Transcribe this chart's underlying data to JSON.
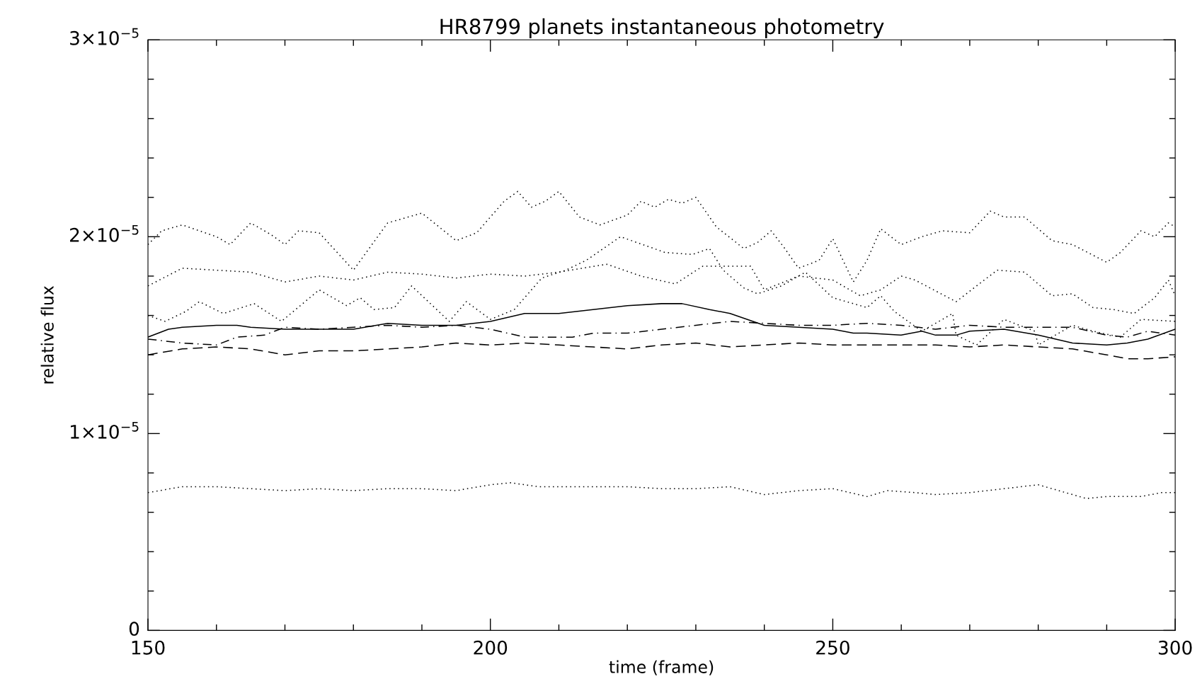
{
  "chart_data": {
    "type": "line",
    "title": "HR8799 planets instantaneous photometry",
    "xlabel": "time (frame)",
    "ylabel": "relative flux",
    "xlim": [
      150,
      300
    ],
    "ylim": [
      0,
      3e-05
    ],
    "xticks": [
      150,
      200,
      250,
      300
    ],
    "yticks": [
      {
        "value": 0,
        "label": "0"
      },
      {
        "value": 1e-05,
        "label": "1×10$^{−5}$"
      },
      {
        "value": 2e-05,
        "label": "2×10$^{−5}$"
      },
      {
        "value": 3e-05,
        "label": "3×10$^{−5}$"
      }
    ],
    "grid": false,
    "marker": "none",
    "series": [
      {
        "color": "#000000",
        "line_style": "dotted",
        "x": [
          150,
          152,
          155,
          160,
          162,
          165,
          168,
          170,
          172,
          175,
          180,
          185,
          190,
          195,
          198,
          202,
          204,
          206,
          208,
          210,
          213,
          216,
          220,
          222,
          224,
          226,
          228,
          230,
          233,
          237,
          239,
          241,
          243,
          245,
          248,
          250,
          253,
          255,
          257,
          260,
          263,
          266,
          270,
          273,
          275,
          278,
          282,
          285,
          290,
          292,
          295,
          297,
          299,
          300
        ],
        "values": [
          1.96e-05,
          2.03e-05,
          2.06e-05,
          2e-05,
          1.96e-05,
          2.07e-05,
          2.01e-05,
          1.96e-05,
          2.03e-05,
          2.02e-05,
          1.83e-05,
          2.07e-05,
          2.12e-05,
          1.98e-05,
          2.02e-05,
          2.18e-05,
          2.23e-05,
          2.15e-05,
          2.18e-05,
          2.23e-05,
          2.1e-05,
          2.06e-05,
          2.11e-05,
          2.18e-05,
          2.15e-05,
          2.19e-05,
          2.17e-05,
          2.2e-05,
          2.05e-05,
          1.94e-05,
          1.97e-05,
          2.03e-05,
          1.94e-05,
          1.84e-05,
          1.88e-05,
          1.99e-05,
          1.77e-05,
          1.88e-05,
          2.04e-05,
          1.96e-05,
          2e-05,
          2.03e-05,
          2.02e-05,
          2.13e-05,
          2.1e-05,
          2.1e-05,
          1.98e-05,
          1.96e-05,
          1.87e-05,
          1.92e-05,
          2.03e-05,
          2e-05,
          2.07e-05,
          2.05e-05
        ]
      },
      {
        "color": "#000000",
        "line_style": "dotted",
        "x": [
          150,
          155,
          160,
          165,
          170,
          175,
          180,
          185,
          190,
          195,
          200,
          205,
          210,
          217,
          222,
          227,
          231,
          238,
          240,
          245,
          250,
          254,
          257,
          260,
          262,
          268,
          274,
          278,
          282,
          285,
          288,
          291,
          294,
          297,
          299,
          300
        ],
        "values": [
          1.75e-05,
          1.84e-05,
          1.83e-05,
          1.82e-05,
          1.77e-05,
          1.8e-05,
          1.78e-05,
          1.82e-05,
          1.81e-05,
          1.79e-05,
          1.81e-05,
          1.8e-05,
          1.82e-05,
          1.86e-05,
          1.8e-05,
          1.76e-05,
          1.85e-05,
          1.85e-05,
          1.73e-05,
          1.8e-05,
          1.78e-05,
          1.7e-05,
          1.73e-05,
          1.8e-05,
          1.78e-05,
          1.67e-05,
          1.83e-05,
          1.82e-05,
          1.7e-05,
          1.71e-05,
          1.64e-05,
          1.63e-05,
          1.61e-05,
          1.69e-05,
          1.78e-05,
          1.7e-05
        ]
      },
      {
        "color": "#000000",
        "line_style": "dotted",
        "x": [
          150,
          152.5,
          155.5,
          157.5,
          161,
          165.5,
          169.5,
          175,
          179,
          181,
          183,
          186,
          188.5,
          194,
          196.5,
          200,
          203.5,
          207.5,
          211,
          214,
          219,
          225.5,
          229.5,
          232,
          234,
          237,
          239,
          242.5,
          246,
          250,
          255,
          257,
          259,
          263,
          267.5,
          268,
          271,
          275,
          279.5,
          280,
          285,
          288,
          292,
          295,
          300
        ],
        "values": [
          1.6e-05,
          1.57e-05,
          1.62e-05,
          1.67e-05,
          1.61e-05,
          1.66e-05,
          1.57e-05,
          1.73e-05,
          1.65e-05,
          1.69e-05,
          1.63e-05,
          1.64e-05,
          1.75e-05,
          1.57e-05,
          1.67e-05,
          1.58e-05,
          1.63e-05,
          1.79e-05,
          1.83e-05,
          1.88e-05,
          2e-05,
          1.92e-05,
          1.91e-05,
          1.94e-05,
          1.83e-05,
          1.74e-05,
          1.71e-05,
          1.75e-05,
          1.82e-05,
          1.69e-05,
          1.64e-05,
          1.7e-05,
          1.62e-05,
          1.52e-05,
          1.61e-05,
          1.5e-05,
          1.45e-05,
          1.58e-05,
          1.52e-05,
          1.45e-05,
          1.55e-05,
          1.52e-05,
          1.49e-05,
          1.58e-05,
          1.57e-05
        ]
      },
      {
        "color": "#000000",
        "line_style": "solid",
        "x": [
          150,
          153,
          155,
          160,
          163,
          165,
          170,
          175,
          180,
          185,
          190,
          195,
          200,
          205,
          210,
          215,
          220,
          225,
          228,
          232,
          235,
          240,
          245,
          250,
          253,
          255,
          260,
          263,
          265,
          268,
          270,
          275,
          280,
          285,
          290,
          293,
          296,
          300
        ],
        "values": [
          1.49e-05,
          1.53e-05,
          1.54e-05,
          1.55e-05,
          1.55e-05,
          1.54e-05,
          1.53e-05,
          1.53e-05,
          1.53e-05,
          1.56e-05,
          1.55e-05,
          1.55e-05,
          1.57e-05,
          1.61e-05,
          1.61e-05,
          1.63e-05,
          1.65e-05,
          1.66e-05,
          1.66e-05,
          1.63e-05,
          1.61e-05,
          1.55e-05,
          1.54e-05,
          1.53e-05,
          1.51e-05,
          1.51e-05,
          1.5e-05,
          1.52e-05,
          1.5e-05,
          1.5e-05,
          1.52e-05,
          1.53e-05,
          1.5e-05,
          1.46e-05,
          1.45e-05,
          1.46e-05,
          1.48e-05,
          1.53e-05
        ]
      },
      {
        "color": "#000000",
        "line_style": "dashed",
        "x": [
          150,
          155,
          160,
          165,
          170,
          175,
          180,
          185,
          190,
          195,
          200,
          205,
          210,
          215,
          220,
          225,
          230,
          235,
          240,
          245,
          250,
          255,
          260,
          265,
          270,
          275,
          280,
          285,
          290,
          293,
          296,
          300
        ],
        "values": [
          1.4e-05,
          1.43e-05,
          1.44e-05,
          1.43e-05,
          1.4e-05,
          1.42e-05,
          1.42e-05,
          1.43e-05,
          1.44e-05,
          1.46e-05,
          1.45e-05,
          1.46e-05,
          1.45e-05,
          1.44e-05,
          1.43e-05,
          1.45e-05,
          1.46e-05,
          1.44e-05,
          1.45e-05,
          1.46e-05,
          1.45e-05,
          1.45e-05,
          1.45e-05,
          1.45e-05,
          1.44e-05,
          1.45e-05,
          1.44e-05,
          1.43e-05,
          1.4e-05,
          1.38e-05,
          1.38e-05,
          1.39e-05
        ]
      },
      {
        "color": "#000000",
        "line_style": "dashdot",
        "x": [
          150,
          155,
          160,
          163,
          167,
          170,
          175,
          180,
          185,
          190,
          195,
          200,
          205,
          208,
          212,
          215,
          220,
          225,
          230,
          235,
          240,
          245,
          250,
          255,
          260,
          265,
          270,
          275,
          280,
          285,
          290,
          293,
          296,
          300
        ],
        "values": [
          1.48e-05,
          1.46e-05,
          1.45e-05,
          1.49e-05,
          1.5e-05,
          1.54e-05,
          1.53e-05,
          1.54e-05,
          1.55e-05,
          1.54e-05,
          1.55e-05,
          1.53e-05,
          1.49e-05,
          1.49e-05,
          1.49e-05,
          1.51e-05,
          1.51e-05,
          1.53e-05,
          1.55e-05,
          1.57e-05,
          1.56e-05,
          1.55e-05,
          1.55e-05,
          1.56e-05,
          1.55e-05,
          1.53e-05,
          1.55e-05,
          1.54e-05,
          1.54e-05,
          1.54e-05,
          1.5e-05,
          1.49e-05,
          1.52e-05,
          1.5e-05
        ]
      },
      {
        "color": "#000000",
        "line_style": "dotted",
        "x": [
          150,
          155,
          160,
          165,
          170,
          175,
          180,
          185,
          190,
          195,
          200,
          203,
          207,
          210,
          215,
          220,
          225,
          230,
          235,
          240,
          245,
          250,
          255,
          258,
          262,
          265,
          270,
          275,
          280,
          283,
          287,
          290,
          295,
          298,
          300
        ],
        "values": [
          7e-06,
          7.3e-06,
          7.3e-06,
          7.2e-06,
          7.1e-06,
          7.2e-06,
          7.1e-06,
          7.2e-06,
          7.2e-06,
          7.1e-06,
          7.4e-06,
          7.5e-06,
          7.3e-06,
          7.3e-06,
          7.3e-06,
          7.3e-06,
          7.2e-06,
          7.2e-06,
          7.3e-06,
          6.9e-06,
          7.1e-06,
          7.2e-06,
          6.8e-06,
          7.1e-06,
          7e-06,
          6.9e-06,
          7e-06,
          7.2e-06,
          7.4e-06,
          7.1e-06,
          6.7e-06,
          6.8e-06,
          6.8e-06,
          7e-06,
          7e-06
        ]
      }
    ]
  }
}
